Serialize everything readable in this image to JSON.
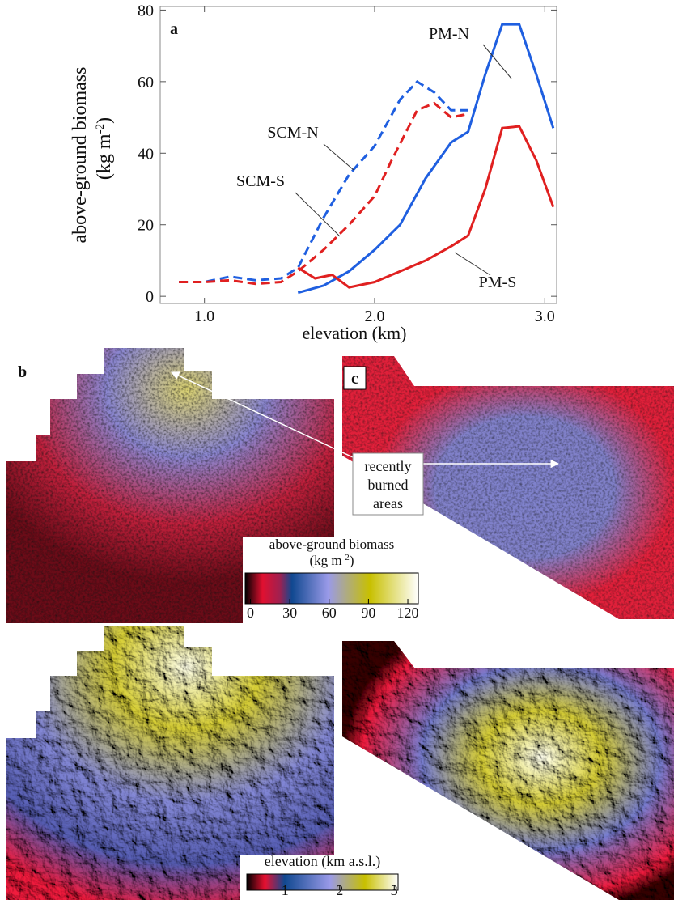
{
  "chart_data": {
    "type": "line",
    "panel": "a",
    "x_label": "elevation (km)",
    "y_label": [
      "above-ground biomass",
      "(kg m",
      "-2",
      ")"
    ],
    "xlim": [
      0.74,
      3.07
    ],
    "ylim": [
      -2,
      81
    ],
    "xticks": [
      {
        "value": 1,
        "label": "1.0"
      },
      {
        "value": 2,
        "label": "2.0"
      },
      {
        "value": 3,
        "label": "3.0"
      }
    ],
    "yticks": [
      0,
      20,
      40,
      60,
      80
    ],
    "series": [
      {
        "name": "SCM-N",
        "color": "#1f5fe0",
        "linestyle": "dashed",
        "x": [
          0.85,
          1.0,
          1.15,
          1.3,
          1.45,
          1.55,
          1.7,
          1.85,
          2.0,
          2.15,
          2.25,
          2.35,
          2.45,
          2.55
        ],
        "values": [
          4,
          4,
          5.5,
          4.5,
          5,
          8,
          22,
          34,
          42,
          55,
          60,
          57,
          52,
          52
        ]
      },
      {
        "name": "SCM-S",
        "color": "#e02020",
        "linestyle": "dashed",
        "x": [
          0.85,
          1.0,
          1.15,
          1.3,
          1.45,
          1.55,
          1.7,
          1.85,
          2.0,
          2.1,
          2.25,
          2.35,
          2.45,
          2.55
        ],
        "values": [
          4,
          4,
          4.5,
          3.5,
          4,
          7,
          13,
          20,
          28,
          38,
          52,
          54,
          50,
          51
        ]
      },
      {
        "name": "PM-N",
        "color": "#1f5fe0",
        "linestyle": "solid",
        "x": [
          1.55,
          1.7,
          1.85,
          2.0,
          2.15,
          2.3,
          2.45,
          2.55,
          2.65,
          2.75,
          2.85,
          2.95,
          3.05
        ],
        "values": [
          1,
          3,
          7,
          13,
          20,
          33,
          43,
          46,
          62,
          76,
          76,
          62,
          47
        ]
      },
      {
        "name": "PM-S",
        "color": "#e02020",
        "linestyle": "solid",
        "x": [
          1.55,
          1.65,
          1.75,
          1.85,
          2.0,
          2.15,
          2.3,
          2.45,
          2.55,
          2.65,
          2.75,
          2.85,
          2.95,
          3.05
        ],
        "values": [
          8,
          5,
          6,
          2.5,
          4,
          7,
          10,
          14,
          17,
          30,
          47,
          47.5,
          38,
          25
        ]
      }
    ]
  },
  "maps": {
    "panel_b": "b",
    "panel_c": "c",
    "annotation": [
      "recently",
      "burned",
      "areas"
    ]
  },
  "colorbars": [
    {
      "title": [
        "above-ground biomass",
        "(kg m",
        "-2",
        ")"
      ],
      "lim": [
        -4,
        128
      ],
      "ticks": [
        0,
        30,
        60,
        90,
        120
      ]
    },
    {
      "title": [
        "elevation (km a.s.l.)"
      ],
      "lim": [
        0.3,
        3.07
      ],
      "ticks": [
        1,
        2,
        3
      ]
    }
  ]
}
